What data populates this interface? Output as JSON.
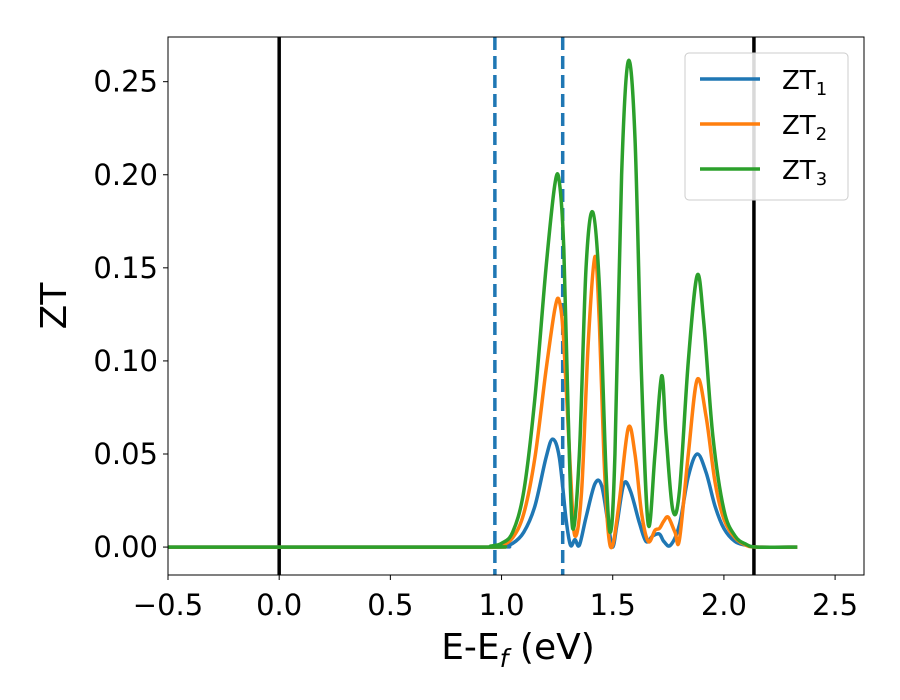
{
  "chart_data": {
    "type": "line",
    "xlabel": {
      "main": "E-E",
      "sub": "f",
      "tail": " (eV)"
    },
    "ylabel": "ZT",
    "xlim": [
      -0.5,
      2.63
    ],
    "ylim": [
      -0.015,
      0.274
    ],
    "x_ticks": [
      -0.5,
      0.0,
      0.5,
      1.0,
      1.5,
      2.0,
      2.5
    ],
    "x_tick_labels": [
      "−0.5",
      "0.0",
      "0.5",
      "1.0",
      "1.5",
      "2.0",
      "2.5"
    ],
    "y_ticks": [
      0.0,
      0.05,
      0.1,
      0.15,
      0.2,
      0.25
    ],
    "y_tick_labels": [
      "0.00",
      "0.05",
      "0.10",
      "0.15",
      "0.20",
      "0.25"
    ],
    "legend_position": "top-right",
    "vertical_lines": [
      {
        "x": 0.0,
        "style": "solid",
        "color": "#000000"
      },
      {
        "x": 2.135,
        "style": "solid",
        "color": "#000000"
      },
      {
        "x": 0.97,
        "style": "dashed",
        "color": "#1f77b4"
      },
      {
        "x": 1.275,
        "style": "dashed",
        "color": "#1f77b4"
      }
    ],
    "series": [
      {
        "name": "ZT",
        "name_sub": "1",
        "color": "#1f77b4",
        "points": [
          [
            -0.5,
            0
          ],
          [
            0.9,
            0
          ],
          [
            1.0,
            0.0005
          ],
          [
            1.05,
            0.002
          ],
          [
            1.1,
            0.008
          ],
          [
            1.15,
            0.022
          ],
          [
            1.2,
            0.048
          ],
          [
            1.23,
            0.058
          ],
          [
            1.26,
            0.048
          ],
          [
            1.29,
            0.015
          ],
          [
            1.31,
            0.001
          ],
          [
            1.33,
            0.004
          ],
          [
            1.35,
            0.001
          ],
          [
            1.38,
            0.016
          ],
          [
            1.42,
            0.034
          ],
          [
            1.45,
            0.033
          ],
          [
            1.48,
            0.012
          ],
          [
            1.5,
            0.0
          ],
          [
            1.52,
            0.013
          ],
          [
            1.55,
            0.034
          ],
          [
            1.58,
            0.03
          ],
          [
            1.62,
            0.013
          ],
          [
            1.65,
            0.003
          ],
          [
            1.68,
            0.006
          ],
          [
            1.71,
            0.007
          ],
          [
            1.73,
            0.003
          ],
          [
            1.76,
            0.001
          ],
          [
            1.8,
            0.012
          ],
          [
            1.84,
            0.038
          ],
          [
            1.88,
            0.05
          ],
          [
            1.92,
            0.04
          ],
          [
            1.96,
            0.022
          ],
          [
            2.0,
            0.01
          ],
          [
            2.05,
            0.003
          ],
          [
            2.1,
            0.001
          ],
          [
            2.15,
            0
          ],
          [
            2.33,
            0
          ]
        ]
      },
      {
        "name": "ZT",
        "name_sub": "2",
        "color": "#ff7f0e",
        "points": [
          [
            -0.5,
            0
          ],
          [
            0.9,
            0
          ],
          [
            0.95,
            0.0003
          ],
          [
            1.0,
            0.001
          ],
          [
            1.05,
            0.005
          ],
          [
            1.1,
            0.018
          ],
          [
            1.15,
            0.048
          ],
          [
            1.2,
            0.095
          ],
          [
            1.24,
            0.128
          ],
          [
            1.26,
            0.132
          ],
          [
            1.28,
            0.11
          ],
          [
            1.31,
            0.04
          ],
          [
            1.33,
            0.006
          ],
          [
            1.36,
            0.03
          ],
          [
            1.39,
            0.11
          ],
          [
            1.42,
            0.156
          ],
          [
            1.44,
            0.12
          ],
          [
            1.46,
            0.05
          ],
          [
            1.48,
            0.008
          ],
          [
            1.5,
            0.001
          ],
          [
            1.53,
            0.025
          ],
          [
            1.57,
            0.064
          ],
          [
            1.6,
            0.05
          ],
          [
            1.63,
            0.018
          ],
          [
            1.66,
            0.003
          ],
          [
            1.69,
            0.009
          ],
          [
            1.71,
            0.01
          ],
          [
            1.73,
            0.014
          ],
          [
            1.75,
            0.016
          ],
          [
            1.78,
            0.008
          ],
          [
            1.8,
            0.004
          ],
          [
            1.84,
            0.05
          ],
          [
            1.88,
            0.09
          ],
          [
            1.92,
            0.07
          ],
          [
            1.96,
            0.035
          ],
          [
            2.0,
            0.015
          ],
          [
            2.05,
            0.005
          ],
          [
            2.1,
            0.001
          ],
          [
            2.15,
            0
          ],
          [
            2.33,
            0
          ]
        ]
      },
      {
        "name": "ZT",
        "name_sub": "3",
        "color": "#2ca02c",
        "points": [
          [
            -0.5,
            0
          ],
          [
            0.9,
            0
          ],
          [
            0.95,
            0.0005
          ],
          [
            1.0,
            0.002
          ],
          [
            1.05,
            0.008
          ],
          [
            1.1,
            0.03
          ],
          [
            1.15,
            0.08
          ],
          [
            1.2,
            0.15
          ],
          [
            1.24,
            0.195
          ],
          [
            1.26,
            0.196
          ],
          [
            1.28,
            0.16
          ],
          [
            1.3,
            0.07
          ],
          [
            1.32,
            0.01
          ],
          [
            1.35,
            0.05
          ],
          [
            1.38,
            0.15
          ],
          [
            1.41,
            0.18
          ],
          [
            1.44,
            0.14
          ],
          [
            1.47,
            0.04
          ],
          [
            1.49,
            0.008
          ],
          [
            1.51,
            0.05
          ],
          [
            1.54,
            0.2
          ],
          [
            1.57,
            0.261
          ],
          [
            1.6,
            0.22
          ],
          [
            1.63,
            0.09
          ],
          [
            1.66,
            0.012
          ],
          [
            1.69,
            0.05
          ],
          [
            1.72,
            0.092
          ],
          [
            1.74,
            0.06
          ],
          [
            1.77,
            0.02
          ],
          [
            1.8,
            0.03
          ],
          [
            1.84,
            0.1
          ],
          [
            1.88,
            0.146
          ],
          [
            1.91,
            0.12
          ],
          [
            1.95,
            0.06
          ],
          [
            2.0,
            0.02
          ],
          [
            2.05,
            0.006
          ],
          [
            2.1,
            0.0015
          ],
          [
            2.15,
            0
          ],
          [
            2.33,
            0
          ]
        ]
      }
    ]
  }
}
